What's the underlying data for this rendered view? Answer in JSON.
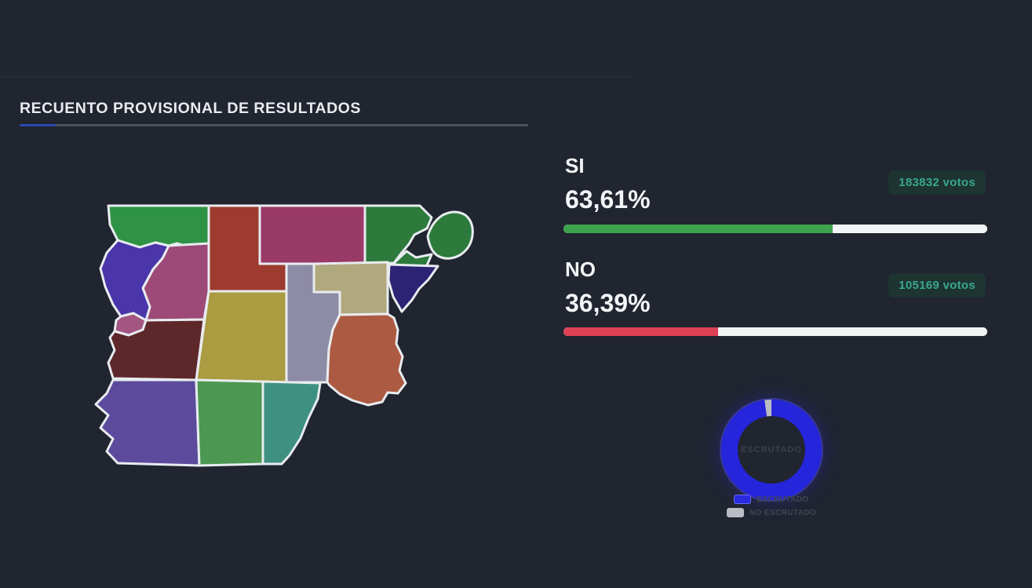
{
  "header": {
    "title": "RECUENTO PROVISIONAL DE RESULTADOS"
  },
  "results": {
    "si": {
      "label": "SI",
      "percent": 63.61,
      "percent_label": "63,61%",
      "votes": 183832,
      "votes_label": "183832 votos",
      "bar_color": "#3fa24c"
    },
    "no": {
      "label": "NO",
      "percent": 36.39,
      "percent_label": "36,39%",
      "votes": 105169,
      "votes_label": "105169 votos",
      "bar_color": "#dc4055"
    },
    "badge_bg": "#1d3431",
    "badge_text_color": "#3aa78e"
  },
  "scrutiny": {
    "center_label": "ESCRUTADO",
    "escrutado_percent": 97.8,
    "no_escrutado_percent": 2.2,
    "colors": {
      "escrutado": "#2525dc",
      "no_escrutado": "#b9bcc2"
    },
    "legend": [
      {
        "label": "ESCRUTADO",
        "color": "#2a2ae0"
      },
      {
        "label": "NO ESCRUTADO",
        "color": "#b9bcc2"
      }
    ]
  },
  "map": {
    "regions": [
      {
        "name": "north-west-green",
        "color": "#2f9346"
      },
      {
        "name": "north-red",
        "color": "#9e3b2f"
      },
      {
        "name": "north-magenta",
        "color": "#9a3a66"
      },
      {
        "name": "north-east-green",
        "color": "#2d7a3c"
      },
      {
        "name": "west-indigo",
        "color": "#4a35aa"
      },
      {
        "name": "center-west-mauve",
        "color": "#9d4a78"
      },
      {
        "name": "west-small-mauve",
        "color": "#a35681"
      },
      {
        "name": "west-maroon",
        "color": "#5e282b"
      },
      {
        "name": "center-olive",
        "color": "#ab9b41"
      },
      {
        "name": "center-gray",
        "color": "#8e8ba6"
      },
      {
        "name": "east-khaki",
        "color": "#b1a97e"
      },
      {
        "name": "east-navy",
        "color": "#2c2374"
      },
      {
        "name": "east-terracotta",
        "color": "#ad5a42"
      },
      {
        "name": "south-west-purple",
        "color": "#5c4b9d"
      },
      {
        "name": "south-green",
        "color": "#4c9852"
      },
      {
        "name": "south-teal",
        "color": "#3e9180"
      }
    ]
  },
  "chart_data": [
    {
      "type": "bar",
      "title": "RECUENTO PROVISIONAL DE RESULTADOS",
      "categories": [
        "SI",
        "NO"
      ],
      "values": [
        63.61,
        36.39
      ],
      "value_labels": [
        "63,61%",
        "36,39%"
      ],
      "annotations": [
        "183832 votos",
        "105169 votos"
      ],
      "colors": [
        "#3fa24c",
        "#dc4055"
      ],
      "xlim": [
        0,
        100
      ],
      "orientation": "horizontal",
      "grid": false
    },
    {
      "type": "pie",
      "title": "ESCRUTADO",
      "labels": [
        "ESCRUTADO",
        "NO ESCRUTADO"
      ],
      "values": [
        97.8,
        2.2
      ],
      "colors": [
        "#2525dc",
        "#b9bcc2"
      ],
      "donut": true,
      "legend_position": "bottom"
    }
  ]
}
